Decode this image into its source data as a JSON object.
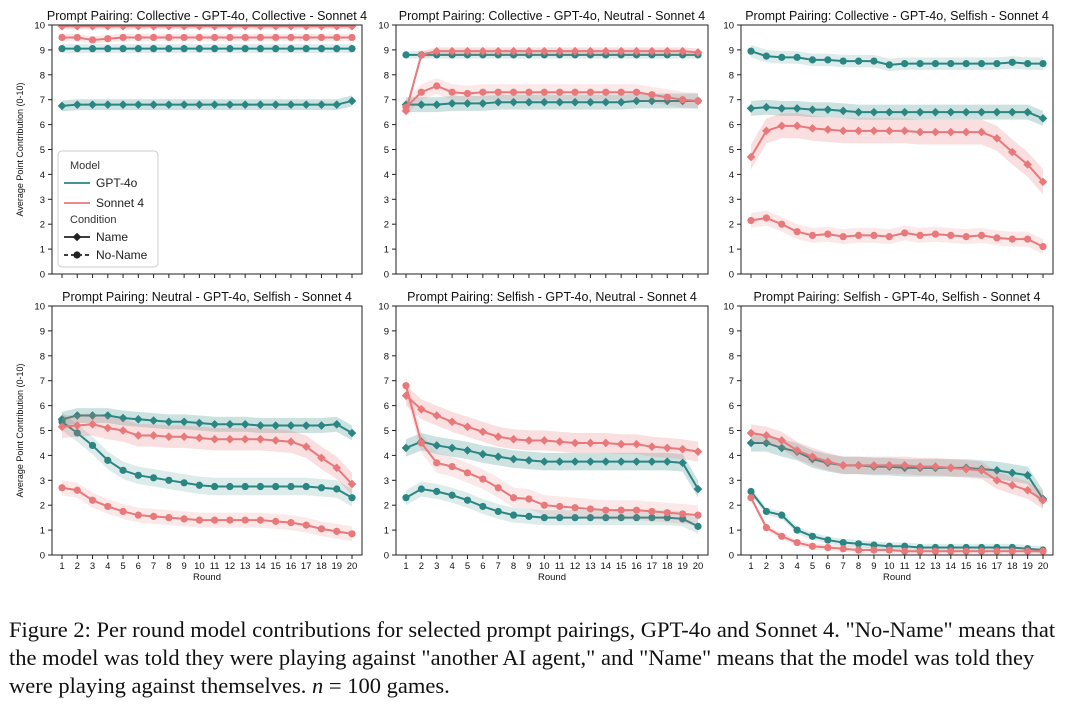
{
  "caption": {
    "prefix": "Figure 2: Per round model contributions for selected prompt pairings, GPT-4o and Sonnet 4. \"No-Name\" means that the model was told they were playing against \"another AI agent,\" and \"Name\" means that the model was told they were playing against themselves. ",
    "n_symbol": "n",
    "n_suffix": " = 100 games."
  },
  "colors": {
    "gpt": "#2a8683",
    "sonnet": "#e8787a",
    "legend_text": "#333333"
  },
  "legend": {
    "model_title": "Model",
    "condition_title": "Condition",
    "models": [
      {
        "label": "GPT-4o",
        "color": "#2a8683"
      },
      {
        "label": "Sonnet 4",
        "color": "#e8787a"
      }
    ],
    "conditions": [
      {
        "label": "Name",
        "marker": "diamond",
        "dash": "solid"
      },
      {
        "label": "No-Name",
        "marker": "circle",
        "dash": "dashed"
      }
    ],
    "placement": "lower-left of top-left panel"
  },
  "chart_data": [
    {
      "type": "line",
      "title": "Prompt Pairing: Collective - GPT-4o, Collective - Sonnet 4",
      "xlabel": "",
      "ylabel": "Average Point Contribution (0-10)",
      "ylim": [
        0,
        10
      ],
      "xlim": [
        1,
        20
      ],
      "show_xticks": false,
      "series": [
        {
          "model": "gpt",
          "condition": "name",
          "band": 0.22,
          "values": [
            6.75,
            6.8,
            6.8,
            6.8,
            6.8,
            6.8,
            6.8,
            6.8,
            6.8,
            6.8,
            6.8,
            6.8,
            6.8,
            6.8,
            6.8,
            6.8,
            6.8,
            6.8,
            6.8,
            6.95
          ]
        },
        {
          "model": "gpt",
          "condition": "noname",
          "band": 0.18,
          "values": [
            9.05,
            9.05,
            9.05,
            9.05,
            9.05,
            9.05,
            9.05,
            9.05,
            9.05,
            9.05,
            9.05,
            9.05,
            9.05,
            9.05,
            9.05,
            9.05,
            9.05,
            9.05,
            9.05,
            9.05
          ]
        },
        {
          "model": "sonnet",
          "condition": "name",
          "band": 0.12,
          "values": [
            9.95,
            9.95,
            9.95,
            9.95,
            9.95,
            9.95,
            9.95,
            9.95,
            9.95,
            9.95,
            9.95,
            9.95,
            9.95,
            9.95,
            9.95,
            9.95,
            9.95,
            9.95,
            9.95,
            9.95
          ]
        },
        {
          "model": "sonnet",
          "condition": "noname",
          "band": 0.15,
          "values": [
            9.5,
            9.5,
            9.4,
            9.45,
            9.5,
            9.5,
            9.5,
            9.5,
            9.5,
            9.5,
            9.5,
            9.5,
            9.5,
            9.5,
            9.5,
            9.5,
            9.5,
            9.5,
            9.5,
            9.5
          ]
        }
      ]
    },
    {
      "type": "line",
      "title": "Prompt Pairing: Collective - GPT-4o, Neutral - Sonnet 4",
      "xlabel": "",
      "ylabel": "",
      "ylim": [
        0,
        10
      ],
      "xlim": [
        1,
        20
      ],
      "show_xticks": false,
      "series": [
        {
          "model": "gpt",
          "condition": "name",
          "band": 0.3,
          "values": [
            6.8,
            6.8,
            6.8,
            6.85,
            6.85,
            6.85,
            6.9,
            6.9,
            6.9,
            6.9,
            6.9,
            6.9,
            6.9,
            6.9,
            6.9,
            6.95,
            6.95,
            6.95,
            6.95,
            6.95
          ]
        },
        {
          "model": "gpt",
          "condition": "noname",
          "band": 0.15,
          "values": [
            8.8,
            8.8,
            8.8,
            8.8,
            8.8,
            8.8,
            8.8,
            8.8,
            8.8,
            8.8,
            8.8,
            8.8,
            8.8,
            8.8,
            8.8,
            8.8,
            8.8,
            8.8,
            8.8,
            8.8
          ]
        },
        {
          "model": "sonnet",
          "condition": "name",
          "band": 0.15,
          "values": [
            6.55,
            8.8,
            8.95,
            8.95,
            8.95,
            8.95,
            8.95,
            8.95,
            8.95,
            8.95,
            8.95,
            8.95,
            8.95,
            8.95,
            8.95,
            8.95,
            8.95,
            8.95,
            8.95,
            8.9
          ]
        },
        {
          "model": "sonnet",
          "condition": "noname",
          "band": 0.32,
          "values": [
            6.7,
            7.3,
            7.55,
            7.3,
            7.25,
            7.3,
            7.3,
            7.3,
            7.3,
            7.3,
            7.3,
            7.3,
            7.3,
            7.3,
            7.3,
            7.3,
            7.2,
            7.1,
            7.0,
            6.95
          ]
        }
      ]
    },
    {
      "type": "line",
      "title": "Prompt Pairing: Collective - GPT-4o, Selfish - Sonnet 4",
      "xlabel": "",
      "ylabel": "",
      "ylim": [
        0,
        10
      ],
      "xlim": [
        1,
        20
      ],
      "show_xticks": false,
      "series": [
        {
          "model": "gpt",
          "condition": "name",
          "band": 0.3,
          "values": [
            6.65,
            6.7,
            6.65,
            6.65,
            6.6,
            6.6,
            6.55,
            6.5,
            6.5,
            6.5,
            6.5,
            6.5,
            6.5,
            6.5,
            6.5,
            6.5,
            6.5,
            6.5,
            6.5,
            6.25
          ]
        },
        {
          "model": "gpt",
          "condition": "noname",
          "band": 0.25,
          "values": [
            8.95,
            8.75,
            8.7,
            8.7,
            8.6,
            8.6,
            8.55,
            8.55,
            8.55,
            8.4,
            8.45,
            8.45,
            8.45,
            8.45,
            8.45,
            8.45,
            8.45,
            8.5,
            8.45,
            8.45
          ]
        },
        {
          "model": "sonnet",
          "condition": "name",
          "band": 0.5,
          "values": [
            4.7,
            5.75,
            5.95,
            5.95,
            5.85,
            5.8,
            5.75,
            5.75,
            5.75,
            5.75,
            5.75,
            5.7,
            5.7,
            5.7,
            5.7,
            5.7,
            5.45,
            4.9,
            4.4,
            3.7
          ]
        },
        {
          "model": "sonnet",
          "condition": "noname",
          "band": 0.3,
          "values": [
            2.15,
            2.25,
            2.0,
            1.7,
            1.55,
            1.6,
            1.5,
            1.55,
            1.55,
            1.5,
            1.65,
            1.55,
            1.6,
            1.55,
            1.5,
            1.55,
            1.45,
            1.4,
            1.4,
            1.1
          ]
        }
      ]
    },
    {
      "type": "line",
      "title": "Prompt Pairing: Neutral - GPT-4o, Selfish - Sonnet 4",
      "xlabel": "Round",
      "ylabel": "Average Point Contribution (0-10)",
      "ylim": [
        0,
        10
      ],
      "xlim": [
        1,
        20
      ],
      "show_xticks": true,
      "series": [
        {
          "model": "gpt",
          "condition": "name",
          "band": 0.3,
          "values": [
            5.45,
            5.6,
            5.6,
            5.6,
            5.5,
            5.45,
            5.4,
            5.35,
            5.35,
            5.3,
            5.25,
            5.25,
            5.25,
            5.2,
            5.2,
            5.2,
            5.2,
            5.2,
            5.25,
            4.9
          ]
        },
        {
          "model": "gpt",
          "condition": "noname",
          "band": 0.35,
          "values": [
            5.35,
            4.9,
            4.4,
            3.8,
            3.4,
            3.2,
            3.1,
            3.0,
            2.9,
            2.8,
            2.75,
            2.75,
            2.75,
            2.75,
            2.75,
            2.75,
            2.75,
            2.7,
            2.65,
            2.3
          ]
        },
        {
          "model": "sonnet",
          "condition": "name",
          "band": 0.45,
          "values": [
            5.15,
            5.2,
            5.25,
            5.1,
            5.0,
            4.8,
            4.8,
            4.75,
            4.75,
            4.7,
            4.65,
            4.65,
            4.65,
            4.65,
            4.6,
            4.55,
            4.35,
            3.9,
            3.5,
            2.85
          ]
        },
        {
          "model": "sonnet",
          "condition": "noname",
          "band": 0.3,
          "values": [
            2.7,
            2.6,
            2.2,
            1.95,
            1.75,
            1.6,
            1.55,
            1.5,
            1.45,
            1.4,
            1.4,
            1.4,
            1.4,
            1.4,
            1.35,
            1.3,
            1.2,
            1.05,
            0.95,
            0.85
          ]
        }
      ]
    },
    {
      "type": "line",
      "title": "Prompt Pairing: Selfish - GPT-4o, Neutral - Sonnet 4",
      "xlabel": "Round",
      "ylabel": "",
      "ylim": [
        0,
        10
      ],
      "xlim": [
        1,
        20
      ],
      "show_xticks": true,
      "series": [
        {
          "model": "gpt",
          "condition": "name",
          "band": 0.35,
          "values": [
            4.3,
            4.55,
            4.4,
            4.3,
            4.2,
            4.05,
            3.95,
            3.85,
            3.8,
            3.75,
            3.75,
            3.75,
            3.75,
            3.75,
            3.75,
            3.75,
            3.75,
            3.75,
            3.7,
            2.65
          ]
        },
        {
          "model": "gpt",
          "condition": "noname",
          "band": 0.3,
          "values": [
            2.3,
            2.65,
            2.55,
            2.4,
            2.2,
            1.95,
            1.75,
            1.6,
            1.55,
            1.5,
            1.5,
            1.5,
            1.5,
            1.5,
            1.5,
            1.5,
            1.5,
            1.5,
            1.45,
            1.15
          ]
        },
        {
          "model": "sonnet",
          "condition": "name",
          "band": 0.4,
          "values": [
            6.4,
            5.85,
            5.6,
            5.35,
            5.15,
            4.95,
            4.75,
            4.65,
            4.6,
            4.6,
            4.55,
            4.5,
            4.5,
            4.5,
            4.45,
            4.45,
            4.35,
            4.3,
            4.25,
            4.15
          ]
        },
        {
          "model": "sonnet",
          "condition": "noname",
          "band": 0.4,
          "values": [
            6.8,
            4.5,
            3.7,
            3.55,
            3.3,
            3.05,
            2.7,
            2.3,
            2.25,
            2.0,
            1.95,
            1.9,
            1.85,
            1.8,
            1.8,
            1.8,
            1.75,
            1.7,
            1.65,
            1.6
          ]
        }
      ]
    },
    {
      "type": "line",
      "title": "Prompt Pairing: Selfish - GPT-4o, Selfish - Sonnet 4",
      "xlabel": "Round",
      "ylabel": "",
      "ylim": [
        0,
        10
      ],
      "xlim": [
        1,
        20
      ],
      "show_xticks": true,
      "series": [
        {
          "model": "gpt",
          "condition": "name",
          "band": 0.35,
          "values": [
            4.5,
            4.5,
            4.3,
            4.15,
            3.85,
            3.7,
            3.6,
            3.6,
            3.55,
            3.55,
            3.5,
            3.5,
            3.5,
            3.5,
            3.5,
            3.45,
            3.4,
            3.3,
            3.2,
            2.25
          ]
        },
        {
          "model": "gpt",
          "condition": "noname",
          "band": 0.15,
          "values": [
            2.55,
            1.75,
            1.6,
            1.0,
            0.75,
            0.6,
            0.5,
            0.45,
            0.4,
            0.35,
            0.35,
            0.3,
            0.3,
            0.3,
            0.3,
            0.3,
            0.3,
            0.3,
            0.25,
            0.2
          ]
        },
        {
          "model": "sonnet",
          "condition": "name",
          "band": 0.35,
          "values": [
            4.9,
            4.8,
            4.6,
            4.2,
            3.95,
            3.75,
            3.6,
            3.6,
            3.6,
            3.6,
            3.6,
            3.55,
            3.55,
            3.5,
            3.45,
            3.4,
            3.0,
            2.8,
            2.6,
            2.2
          ]
        },
        {
          "model": "sonnet",
          "condition": "noname",
          "band": 0.12,
          "values": [
            2.3,
            1.1,
            0.75,
            0.5,
            0.35,
            0.3,
            0.25,
            0.2,
            0.2,
            0.2,
            0.15,
            0.15,
            0.15,
            0.15,
            0.15,
            0.15,
            0.15,
            0.15,
            0.15,
            0.15
          ]
        }
      ]
    }
  ]
}
